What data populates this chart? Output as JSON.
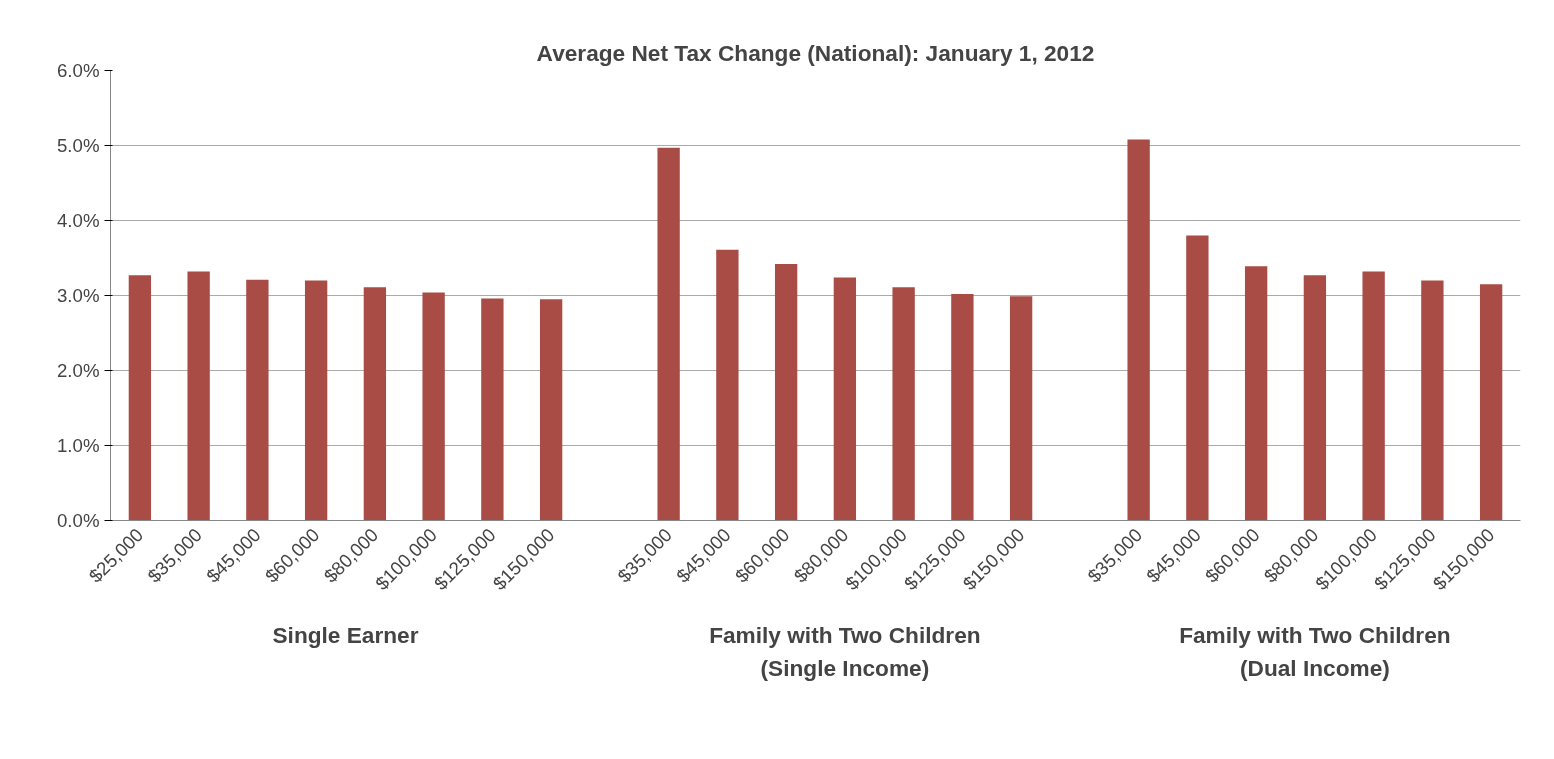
{
  "chart_data": {
    "type": "bar",
    "title": "Average Net Tax Change (National): January 1, 2012",
    "categories": [
      "$25,000",
      "$35,000",
      "$45,000",
      "$60,000",
      "$80,000",
      "$100,000",
      "$125,000",
      "$150,000",
      null,
      "$35,000",
      "$45,000",
      "$60,000",
      "$80,000",
      "$100,000",
      "$125,000",
      "$150,000",
      null,
      "$35,000",
      "$45,000",
      "$60,000",
      "$80,000",
      "$100,000",
      "$125,000",
      "$150,000"
    ],
    "values": [
      3.27,
      3.32,
      3.21,
      3.2,
      3.11,
      3.04,
      2.96,
      2.95,
      null,
      4.97,
      3.61,
      3.42,
      3.24,
      3.11,
      3.02,
      2.99,
      null,
      5.08,
      3.8,
      3.39,
      3.27,
      3.32,
      3.2,
      3.15
    ],
    "color": "#a84c45",
    "ylim": [
      0,
      6
    ],
    "yticks": [
      {
        "value": 0,
        "label": "0.0%"
      },
      {
        "value": 1,
        "label": "1.0%"
      },
      {
        "value": 2,
        "label": "2.0%"
      },
      {
        "value": 3,
        "label": "3.0%"
      },
      {
        "value": 4,
        "label": "4.0%"
      },
      {
        "value": 5,
        "label": "5.0%"
      },
      {
        "value": 6,
        "label": "6.0%"
      }
    ],
    "grid": "y",
    "annotations": [
      "Single Earner",
      "Family with Two Children\n(Single Income)",
      "Family with Two Children\n(Dual Income)"
    ]
  }
}
